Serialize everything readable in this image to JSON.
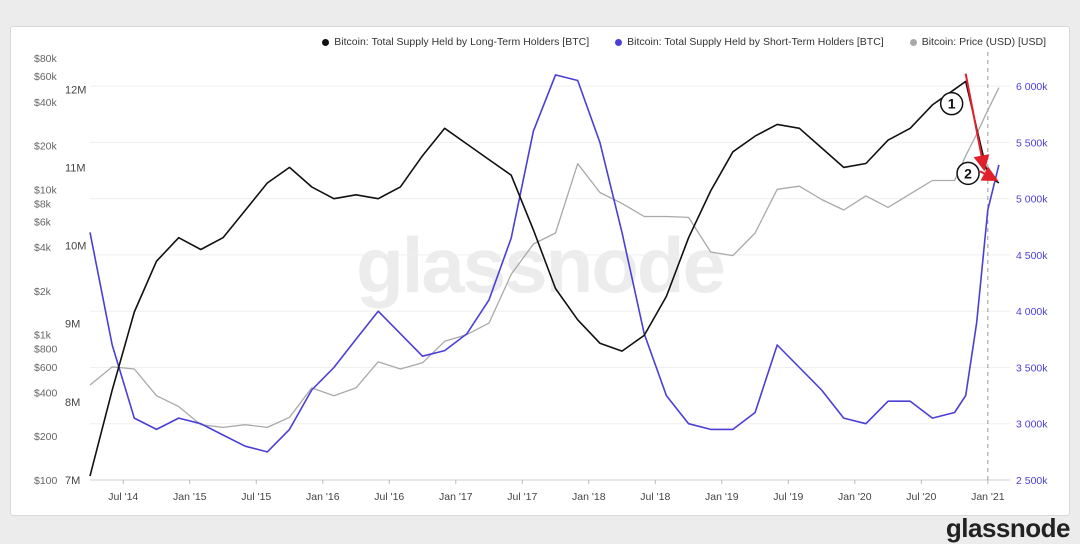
{
  "chart_data": {
    "type": "line",
    "title": "",
    "watermark": "glassnode",
    "legend_placement": "top-right",
    "x_ticks": [
      "Jul '14",
      "Jan '15",
      "Jul '15",
      "Jan '16",
      "Jul '16",
      "Jan '17",
      "Jul '17",
      "Jan '18",
      "Jul '18",
      "Jan '19",
      "Jul '19",
      "Jan '20",
      "Jul '20",
      "Jan '21"
    ],
    "x_range": [
      "2014-04",
      "2021-03"
    ],
    "y_left_price": {
      "scale": "log",
      "range": [
        100,
        80000
      ],
      "ticks": [
        "$100",
        "$200",
        "$400",
        "$600",
        "$800",
        "$1k",
        "$2k",
        "$4k",
        "$6k",
        "$8k",
        "$10k",
        "$20k",
        "$40k",
        "$60k",
        "$80k"
      ],
      "tick_values": [
        100,
        200,
        400,
        600,
        800,
        1000,
        2000,
        4000,
        6000,
        8000,
        10000,
        20000,
        40000,
        60000,
        80000
      ]
    },
    "y_left_lth": {
      "range": [
        7000000,
        12400000
      ],
      "ticks": [
        "7M",
        "8M",
        "9M",
        "10M",
        "11M",
        "12M"
      ],
      "tick_values": [
        7000000,
        8000000,
        9000000,
        10000000,
        11000000,
        12000000
      ]
    },
    "y_right_sth": {
      "range": [
        2500000,
        6250000
      ],
      "ticks": [
        "2 500k",
        "3 000k",
        "3 500k",
        "4 000k",
        "4 500k",
        "5 000k",
        "5 500k",
        "6 000k"
      ],
      "tick_values": [
        2500000,
        3000000,
        3500000,
        4000000,
        4500000,
        5000000,
        5500000,
        6000000
      ]
    },
    "vertical_marker": {
      "x": "2021-01",
      "style": "dashed"
    },
    "annotations": [
      {
        "label": "1",
        "arrow_from": [
          "2020-11",
          12200000
        ],
        "arrow_to": [
          "2020-12-20",
          11000000
        ]
      },
      {
        "label": "2",
        "arrow_from": [
          "2020-12-10",
          10950000
        ],
        "arrow_to": [
          "2021-01-20",
          10850000
        ]
      }
    ],
    "series": [
      {
        "name": "Bitcoin: Total Supply Held by Long-Term Holders [BTC]",
        "color": "#111111",
        "axis": "lth",
        "x": [
          "2014-04",
          "2014-06",
          "2014-08",
          "2014-10",
          "2014-12",
          "2015-02",
          "2015-04",
          "2015-06",
          "2015-08",
          "2015-10",
          "2015-12",
          "2016-02",
          "2016-04",
          "2016-06",
          "2016-08",
          "2016-10",
          "2016-12",
          "2017-02",
          "2017-04",
          "2017-06",
          "2017-08",
          "2017-10",
          "2017-12",
          "2018-02",
          "2018-04",
          "2018-06",
          "2018-08",
          "2018-10",
          "2018-12",
          "2019-02",
          "2019-04",
          "2019-06",
          "2019-08",
          "2019-10",
          "2019-12",
          "2020-02",
          "2020-04",
          "2020-06",
          "2020-08",
          "2020-10",
          "2020-11",
          "2020-12",
          "2021-01",
          "2021-02"
        ],
        "y": [
          7050000,
          8150000,
          9150000,
          9800000,
          10100000,
          9950000,
          10100000,
          10450000,
          10800000,
          11000000,
          10750000,
          10600000,
          10650000,
          10600000,
          10750000,
          11150000,
          11500000,
          11300000,
          11100000,
          10900000,
          10200000,
          9450000,
          9050000,
          8750000,
          8650000,
          8850000,
          9350000,
          10100000,
          10700000,
          11200000,
          11400000,
          11550000,
          11500000,
          11250000,
          11000000,
          11050000,
          11350000,
          11500000,
          11800000,
          12000000,
          12100000,
          11500000,
          10900000,
          10800000
        ]
      },
      {
        "name": "Bitcoin: Total Supply Held by Short-Term Holders [BTC]",
        "color": "#4b3fd6",
        "axis": "sth",
        "x": [
          "2014-04",
          "2014-06",
          "2014-08",
          "2014-10",
          "2014-12",
          "2015-02",
          "2015-04",
          "2015-06",
          "2015-08",
          "2015-10",
          "2015-12",
          "2016-02",
          "2016-04",
          "2016-06",
          "2016-08",
          "2016-10",
          "2016-12",
          "2017-02",
          "2017-04",
          "2017-06",
          "2017-08",
          "2017-10",
          "2017-12",
          "2018-02",
          "2018-04",
          "2018-06",
          "2018-08",
          "2018-10",
          "2018-12",
          "2019-02",
          "2019-04",
          "2019-06",
          "2019-08",
          "2019-10",
          "2019-12",
          "2020-02",
          "2020-04",
          "2020-06",
          "2020-08",
          "2020-10",
          "2020-11",
          "2020-12",
          "2021-01",
          "2021-02"
        ],
        "y": [
          4700000,
          3700000,
          3050000,
          2950000,
          3050000,
          3000000,
          2900000,
          2800000,
          2750000,
          2950000,
          3300000,
          3500000,
          3750000,
          4000000,
          3800000,
          3600000,
          3650000,
          3800000,
          4100000,
          4650000,
          5600000,
          6100000,
          6050000,
          5500000,
          4700000,
          3800000,
          3250000,
          3000000,
          2950000,
          2950000,
          3100000,
          3700000,
          3500000,
          3300000,
          3050000,
          3000000,
          3200000,
          3200000,
          3050000,
          3100000,
          3250000,
          3900000,
          4900000,
          5300000
        ]
      },
      {
        "name": "Bitcoin: Price (USD) [USD]",
        "color": "#a9a9a9",
        "axis": "price",
        "x": [
          "2014-04",
          "2014-06",
          "2014-08",
          "2014-10",
          "2014-12",
          "2015-02",
          "2015-04",
          "2015-06",
          "2015-08",
          "2015-10",
          "2015-12",
          "2016-02",
          "2016-04",
          "2016-06",
          "2016-08",
          "2016-10",
          "2016-12",
          "2017-02",
          "2017-04",
          "2017-06",
          "2017-08",
          "2017-10",
          "2017-12",
          "2018-02",
          "2018-04",
          "2018-06",
          "2018-08",
          "2018-10",
          "2018-12",
          "2019-02",
          "2019-04",
          "2019-06",
          "2019-08",
          "2019-10",
          "2019-12",
          "2020-02",
          "2020-04",
          "2020-06",
          "2020-08",
          "2020-10",
          "2020-11",
          "2020-12",
          "2021-01",
          "2021-02"
        ],
        "y": [
          450,
          600,
          580,
          380,
          320,
          240,
          230,
          240,
          230,
          270,
          430,
          380,
          430,
          650,
          580,
          640,
          900,
          1000,
          1200,
          2600,
          4200,
          5000,
          15000,
          9500,
          8000,
          6500,
          6500,
          6400,
          3700,
          3500,
          5000,
          10000,
          10500,
          8500,
          7200,
          9000,
          7500,
          9300,
          11500,
          11500,
          17000,
          24000,
          35000,
          50000
        ]
      }
    ]
  }
}
